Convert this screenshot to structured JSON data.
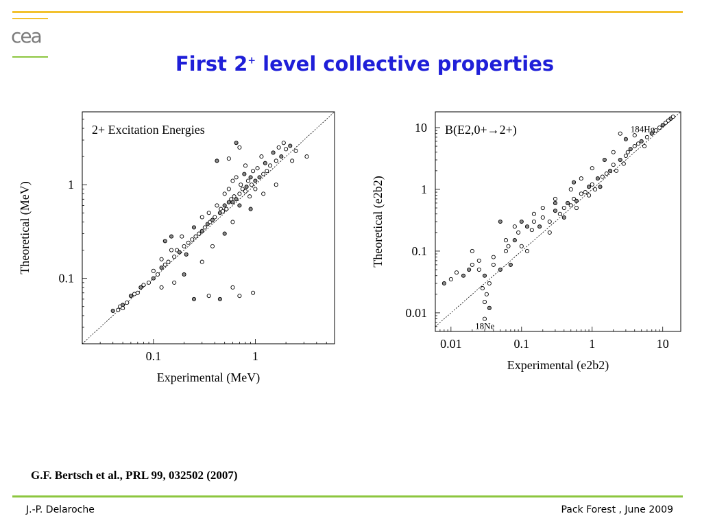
{
  "slide": {
    "logo_text": "cea",
    "title_main": "First 2",
    "title_sup": "+",
    "title_rest": " level collective properties",
    "citation": "G.F. Bertsch et al., PRL 99, 032502 (2007)",
    "footer_left": "J.-P. Delaroche",
    "footer_right": "Pack Forest , June 2009",
    "colors": {
      "title": "#1f1fd8",
      "top_rule": "#f2c12e",
      "bottom_rule": "#8cc63f"
    }
  },
  "chart_data": [
    {
      "type": "scatter",
      "title": "2+ Excitation Energies",
      "xlabel": "Experimental  (MeV)",
      "ylabel": "Theoretical  (MeV)",
      "xscale": "log",
      "yscale": "log",
      "xlim": [
        0.02,
        6
      ],
      "ylim": [
        0.02,
        6
      ],
      "xticks": [
        {
          "v": 0.1,
          "label": "0.1"
        },
        {
          "v": 1,
          "label": "1"
        }
      ],
      "yticks": [
        {
          "v": 0.1,
          "label": "0.1"
        },
        {
          "v": 1,
          "label": "1"
        }
      ],
      "diagonal": true,
      "points": [
        [
          0.04,
          0.045
        ],
        [
          0.045,
          0.046
        ],
        [
          0.047,
          0.05
        ],
        [
          0.05,
          0.052
        ],
        [
          0.05,
          0.048
        ],
        [
          0.055,
          0.055
        ],
        [
          0.06,
          0.065
        ],
        [
          0.065,
          0.068
        ],
        [
          0.07,
          0.07
        ],
        [
          0.075,
          0.08
        ],
        [
          0.08,
          0.085
        ],
        [
          0.09,
          0.09
        ],
        [
          0.1,
          0.1
        ],
        [
          0.1,
          0.12
        ],
        [
          0.11,
          0.11
        ],
        [
          0.12,
          0.13
        ],
        [
          0.12,
          0.16
        ],
        [
          0.13,
          0.14
        ],
        [
          0.13,
          0.25
        ],
        [
          0.14,
          0.15
        ],
        [
          0.15,
          0.2
        ],
        [
          0.15,
          0.28
        ],
        [
          0.16,
          0.17
        ],
        [
          0.17,
          0.2
        ],
        [
          0.18,
          0.19
        ],
        [
          0.19,
          0.28
        ],
        [
          0.2,
          0.22
        ],
        [
          0.21,
          0.18
        ],
        [
          0.22,
          0.24
        ],
        [
          0.24,
          0.26
        ],
        [
          0.25,
          0.35
        ],
        [
          0.26,
          0.28
        ],
        [
          0.28,
          0.3
        ],
        [
          0.3,
          0.32
        ],
        [
          0.3,
          0.45
        ],
        [
          0.32,
          0.35
        ],
        [
          0.34,
          0.38
        ],
        [
          0.35,
          0.5
        ],
        [
          0.36,
          0.4
        ],
        [
          0.38,
          0.42
        ],
        [
          0.4,
          0.45
        ],
        [
          0.42,
          0.6
        ],
        [
          0.45,
          0.5
        ],
        [
          0.46,
          0.55
        ],
        [
          0.48,
          0.52
        ],
        [
          0.5,
          0.6
        ],
        [
          0.5,
          0.8
        ],
        [
          0.52,
          0.55
        ],
        [
          0.55,
          0.65
        ],
        [
          0.55,
          0.9
        ],
        [
          0.58,
          0.7
        ],
        [
          0.6,
          0.65
        ],
        [
          0.6,
          1.1
        ],
        [
          0.62,
          0.75
        ],
        [
          0.65,
          0.7
        ],
        [
          0.65,
          1.2
        ],
        [
          0.7,
          0.8
        ],
        [
          0.7,
          0.6
        ],
        [
          0.72,
          1.0
        ],
        [
          0.75,
          0.9
        ],
        [
          0.78,
          1.3
        ],
        [
          0.8,
          0.85
        ],
        [
          0.8,
          1.6
        ],
        [
          0.82,
          0.95
        ],
        [
          0.85,
          1.1
        ],
        [
          0.88,
          0.75
        ],
        [
          0.9,
          1.2
        ],
        [
          0.92,
          1.0
        ],
        [
          0.95,
          1.4
        ],
        [
          1.0,
          1.1
        ],
        [
          1.0,
          0.9
        ],
        [
          1.05,
          1.5
        ],
        [
          1.1,
          1.2
        ],
        [
          1.15,
          2.0
        ],
        [
          1.2,
          1.3
        ],
        [
          1.25,
          1.7
        ],
        [
          1.3,
          1.4
        ],
        [
          1.4,
          1.6
        ],
        [
          1.5,
          2.2
        ],
        [
          1.6,
          1.8
        ],
        [
          1.7,
          2.5
        ],
        [
          1.8,
          2.0
        ],
        [
          1.9,
          2.8
        ],
        [
          2.0,
          2.4
        ],
        [
          2.2,
          2.6
        ],
        [
          2.5,
          2.3
        ],
        [
          0.35,
          0.065
        ],
        [
          0.45,
          0.06
        ],
        [
          0.7,
          0.065
        ],
        [
          0.95,
          0.07
        ],
        [
          0.25,
          0.06
        ],
        [
          0.6,
          0.08
        ],
        [
          3.2,
          2.0
        ],
        [
          0.42,
          1.8
        ],
        [
          0.55,
          1.9
        ],
        [
          0.7,
          2.5
        ],
        [
          0.5,
          0.3
        ],
        [
          0.6,
          0.4
        ],
        [
          0.38,
          0.22
        ],
        [
          0.9,
          0.55
        ],
        [
          1.2,
          0.8
        ],
        [
          0.3,
          0.15
        ],
        [
          0.2,
          0.11
        ],
        [
          0.16,
          0.09
        ],
        [
          0.12,
          0.08
        ],
        [
          0.65,
          2.8
        ],
        [
          1.6,
          1.0
        ],
        [
          2.3,
          1.8
        ]
      ]
    },
    {
      "type": "scatter",
      "title": "B(E2,0+→2+)",
      "xlabel": "Experimental  (e2b2)",
      "ylabel": "Theoretical  (e2b2)",
      "xscale": "log",
      "yscale": "log",
      "xlim": [
        0.006,
        18
      ],
      "ylim": [
        0.005,
        18
      ],
      "xticks": [
        {
          "v": 0.01,
          "label": "0.01"
        },
        {
          "v": 0.1,
          "label": "0.1"
        },
        {
          "v": 1,
          "label": "1"
        },
        {
          "v": 10,
          "label": "10"
        }
      ],
      "yticks": [
        {
          "v": 0.01,
          "label": "0.01"
        },
        {
          "v": 0.1,
          "label": "0.1"
        },
        {
          "v": 1,
          "label": "1"
        },
        {
          "v": 10,
          "label": "10"
        }
      ],
      "diagonal": true,
      "annotations": [
        {
          "text": "184Hg",
          "x": 3.5,
          "y": 8.5
        },
        {
          "text": "18Ne",
          "x": 0.022,
          "y": 0.0055
        }
      ],
      "points": [
        [
          0.008,
          0.03
        ],
        [
          0.01,
          0.035
        ],
        [
          0.012,
          0.045
        ],
        [
          0.015,
          0.04
        ],
        [
          0.02,
          0.06
        ],
        [
          0.025,
          0.05
        ],
        [
          0.03,
          0.04
        ],
        [
          0.03,
          0.015
        ],
        [
          0.032,
          0.02
        ],
        [
          0.035,
          0.012
        ],
        [
          0.028,
          0.025
        ],
        [
          0.04,
          0.06
        ],
        [
          0.05,
          0.05
        ],
        [
          0.06,
          0.1
        ],
        [
          0.065,
          0.12
        ],
        [
          0.08,
          0.15
        ],
        [
          0.09,
          0.2
        ],
        [
          0.1,
          0.12
        ],
        [
          0.12,
          0.25
        ],
        [
          0.14,
          0.22
        ],
        [
          0.15,
          0.3
        ],
        [
          0.18,
          0.25
        ],
        [
          0.2,
          0.35
        ],
        [
          0.25,
          0.3
        ],
        [
          0.3,
          0.45
        ],
        [
          0.35,
          0.4
        ],
        [
          0.4,
          0.5
        ],
        [
          0.45,
          0.6
        ],
        [
          0.5,
          0.55
        ],
        [
          0.55,
          0.7
        ],
        [
          0.6,
          0.65
        ],
        [
          0.7,
          0.85
        ],
        [
          0.8,
          0.9
        ],
        [
          0.9,
          1.1
        ],
        [
          1.0,
          1.2
        ],
        [
          1.1,
          1.0
        ],
        [
          1.2,
          1.5
        ],
        [
          1.4,
          1.6
        ],
        [
          1.6,
          1.8
        ],
        [
          1.8,
          2.0
        ],
        [
          2.0,
          2.5
        ],
        [
          2.2,
          2.0
        ],
        [
          2.5,
          3.0
        ],
        [
          3.0,
          3.5
        ],
        [
          3.2,
          4.0
        ],
        [
          3.5,
          4.5
        ],
        [
          4.0,
          5.0
        ],
        [
          4.5,
          5.5
        ],
        [
          5.0,
          6.0
        ],
        [
          5.5,
          5.0
        ],
        [
          6.0,
          7.0
        ],
        [
          7.0,
          8.0
        ],
        [
          8.0,
          9.0
        ],
        [
          9.0,
          10.0
        ],
        [
          10.0,
          11.0
        ],
        [
          11.0,
          12.0
        ],
        [
          12.0,
          13.0
        ],
        [
          13.0,
          14.0
        ],
        [
          14.0,
          15.0
        ],
        [
          2.5,
          8.0
        ],
        [
          3.0,
          6.5
        ],
        [
          4.0,
          7.5
        ],
        [
          2.0,
          4.0
        ],
        [
          1.5,
          3.0
        ],
        [
          0.7,
          1.5
        ],
        [
          0.5,
          1.0
        ],
        [
          0.3,
          0.6
        ],
        [
          0.2,
          0.5
        ],
        [
          0.15,
          0.4
        ],
        [
          0.1,
          0.3
        ],
        [
          0.08,
          0.25
        ],
        [
          0.06,
          0.15
        ],
        [
          0.05,
          0.3
        ],
        [
          0.04,
          0.08
        ],
        [
          0.025,
          0.07
        ],
        [
          0.018,
          0.05
        ],
        [
          0.02,
          0.1
        ],
        [
          0.3,
          0.7
        ],
        [
          0.4,
          0.35
        ],
        [
          0.6,
          0.5
        ],
        [
          0.9,
          0.8
        ],
        [
          1.3,
          1.1
        ],
        [
          0.25,
          0.2
        ],
        [
          0.12,
          0.1
        ],
        [
          0.07,
          0.06
        ],
        [
          0.035,
          0.03
        ],
        [
          0.03,
          0.008
        ],
        [
          0.55,
          1.3
        ],
        [
          1.0,
          2.2
        ],
        [
          2.8,
          2.6
        ]
      ]
    }
  ]
}
